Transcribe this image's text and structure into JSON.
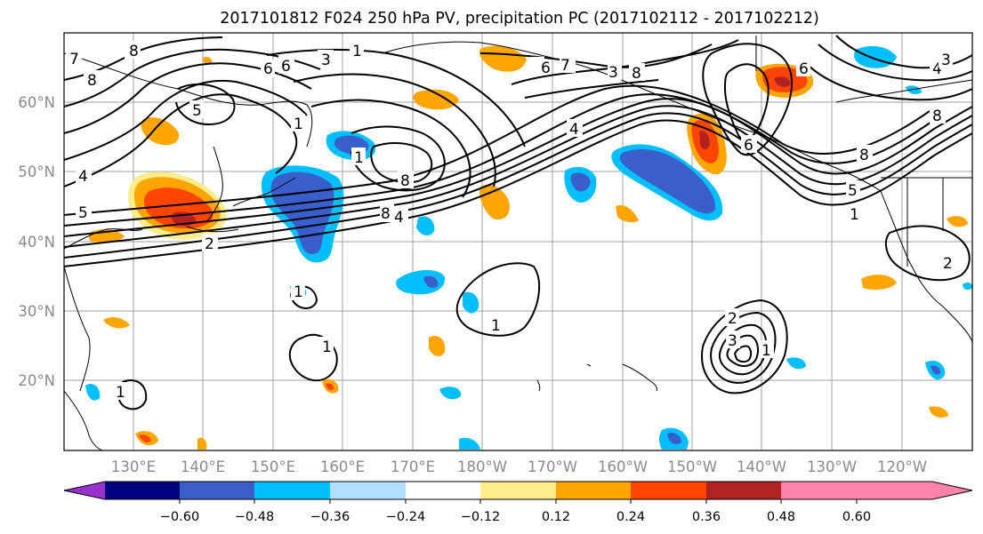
{
  "title": "2017101812 F024 250 hPa PV, precipitation PC (2017102112 - 2017102212)",
  "map": {
    "lat_labels": [
      "60°N",
      "50°N",
      "40°N",
      "30°N",
      "20°N"
    ],
    "lon_labels": [
      "130°E",
      "140°E",
      "150°E",
      "160°E",
      "170°E",
      "180°W",
      "170°W",
      "160°W",
      "150°W",
      "140°W",
      "130°W",
      "120°W"
    ],
    "contour_labels": [
      "7",
      "8",
      "6",
      "3",
      "1",
      "8",
      "6",
      "7",
      "1",
      "3",
      "8",
      "4",
      "3",
      "8",
      "5",
      "1",
      "8",
      "6",
      "1",
      "4",
      "5",
      "4",
      "8",
      "4",
      "5",
      "2",
      "1",
      "1",
      "1",
      "1",
      "2",
      "3",
      "5",
      "1",
      "1",
      "1",
      "2",
      "8"
    ],
    "land_color": "#ffffff",
    "grid_color": "#a0a0a0"
  },
  "colorbar": {
    "ticks": [
      "−0.60",
      "−0.48",
      "−0.36",
      "−0.24",
      "−0.12",
      "0.12",
      "0.24",
      "0.36",
      "0.48",
      "0.60"
    ],
    "colors": [
      "#9932cc",
      "#000080",
      "#3a5fcd",
      "#00bfff",
      "#b0e2ff",
      "#ffffff",
      "#ffec8b",
      "#ffa500",
      "#ff4500",
      "#b22222",
      "#ff82ab"
    ]
  }
}
